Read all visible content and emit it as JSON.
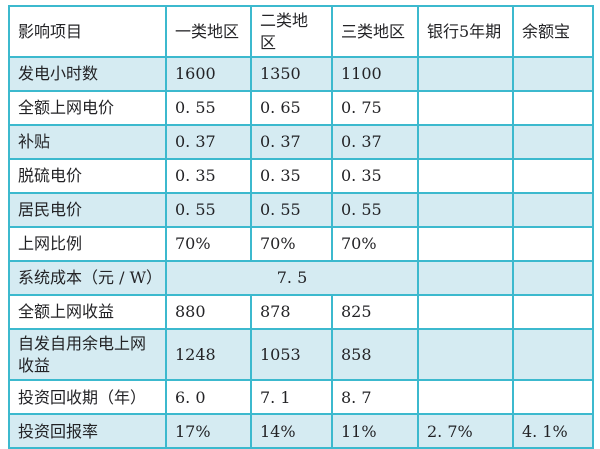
{
  "meta": {
    "background_color": "#ffffff",
    "grid_border_color": "#3cb9ce",
    "shaded_row_fill": "#d5ebf2",
    "text_color": "#232326"
  },
  "table": {
    "columns": [
      "影响项目",
      "一类地区",
      "二类地区",
      "三类地区",
      "银行5年期",
      "余额宝"
    ],
    "rows": [
      {
        "cells": [
          "发电小时数",
          "1600",
          "1350",
          "1100",
          "",
          ""
        ],
        "shaded": true
      },
      {
        "cells": [
          "全额上网电价",
          "0. 55",
          "0. 65",
          "0. 75",
          "",
          ""
        ],
        "shaded": false
      },
      {
        "cells": [
          "补贴",
          "0. 37",
          "0. 37",
          "0. 37",
          "",
          ""
        ],
        "shaded": true
      },
      {
        "cells": [
          "脱硫电价",
          "0. 35",
          "0. 35",
          "0. 35",
          "",
          ""
        ],
        "shaded": false
      },
      {
        "cells": [
          "居民电价",
          "0. 55",
          "0. 55",
          "0. 55",
          "",
          ""
        ],
        "shaded": true
      },
      {
        "cells": [
          "上网比例",
          "70%",
          "70%",
          "70%",
          "",
          ""
        ],
        "shaded": false
      },
      {
        "cells": [
          "系统成本（元 / W）",
          "7. 5",
          "",
          ""
        ],
        "merge": {
          "start": 1,
          "span": 3
        },
        "shaded": true
      },
      {
        "cells": [
          "全额上网收益",
          "880",
          "878",
          "825",
          "",
          ""
        ],
        "shaded": false
      },
      {
        "cells": [
          "自发自用余电上网收益",
          "1248",
          "1053",
          "858",
          "",
          ""
        ],
        "shaded": true
      },
      {
        "cells": [
          "投资回收期（年）",
          "6. 0",
          "7. 1",
          "8. 7",
          "",
          ""
        ],
        "shaded": false
      },
      {
        "cells": [
          "投资回报率",
          "17%",
          "14%",
          "11%",
          "2. 7%",
          "4. 1%"
        ],
        "shaded": true
      }
    ]
  },
  "chart_data": {
    "type": "table",
    "title": "",
    "columns": [
      "影响项目",
      "一类地区",
      "二类地区",
      "三类地区",
      "银行5年期",
      "余额宝"
    ],
    "rows": [
      [
        "发电小时数",
        "1600",
        "1350",
        "1100",
        "",
        ""
      ],
      [
        "全额上网电价",
        "0.55",
        "0.65",
        "0.75",
        "",
        ""
      ],
      [
        "补贴",
        "0.37",
        "0.37",
        "0.37",
        "",
        ""
      ],
      [
        "脱硫电价",
        "0.35",
        "0.35",
        "0.35",
        "",
        ""
      ],
      [
        "居民电价",
        "0.55",
        "0.55",
        "0.55",
        "",
        ""
      ],
      [
        "上网比例",
        "70%",
        "70%",
        "70%",
        "",
        ""
      ],
      [
        "系统成本（元/W）",
        "7.5",
        "7.5",
        "7.5",
        "",
        ""
      ],
      [
        "全额上网收益",
        "880",
        "878",
        "825",
        "",
        ""
      ],
      [
        "自发自用余电上网收益",
        "1248",
        "1053",
        "858",
        "",
        ""
      ],
      [
        "投资回收期（年）",
        "6.0",
        "7.1",
        "8.7",
        "",
        ""
      ],
      [
        "投资回报率",
        "17%",
        "14%",
        "11%",
        "2.7%",
        "4.1%"
      ]
    ],
    "merged_cells": [
      {
        "row_label": "系统成本（元/W）",
        "value": "7.5",
        "spans_columns": [
          "一类地区",
          "二类地区",
          "三类地区"
        ]
      }
    ],
    "layout": {
      "grid": true,
      "alternating_row_shading": true
    }
  }
}
